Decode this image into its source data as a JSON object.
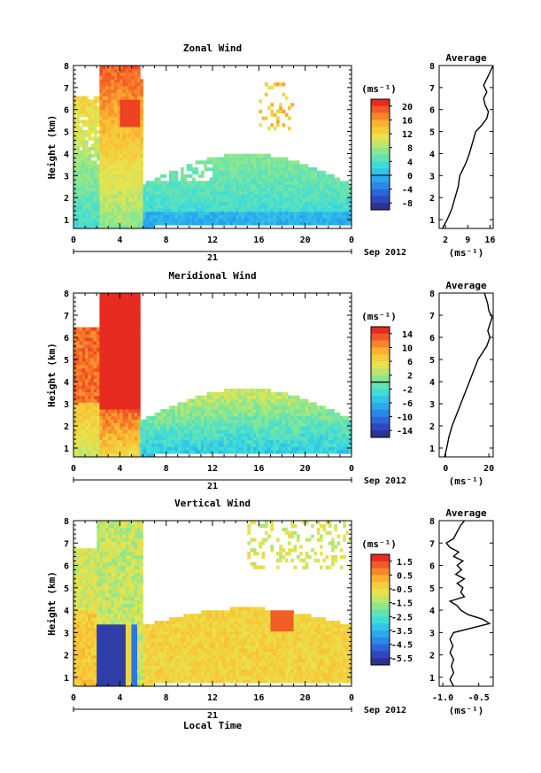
{
  "chart_data": [
    {
      "type": "heatmap",
      "title": "Zonal Wind",
      "ylabel": "Height (km)",
      "xlim": [
        0,
        24
      ],
      "ylim": [
        0.6,
        8
      ],
      "x_ticks": [
        "0",
        "4",
        "8",
        "12",
        "16",
        "20",
        "0"
      ],
      "y_ticks": [
        "1",
        "2",
        "3",
        "4",
        "5",
        "6",
        "7",
        "8"
      ],
      "date_label": "21",
      "month_label": "Sep 2012",
      "colorbar": {
        "unit": "(ms⁻¹)",
        "ticks": [
          "20",
          "16",
          "12",
          "8",
          "4",
          "0",
          "-4",
          "-8"
        ],
        "range": [
          -10,
          22
        ],
        "contour_at": 0
      },
      "profile": {
        "title": "Average",
        "xlabel": "(ms⁻¹)",
        "x_ticks": [
          "2",
          "9",
          "16"
        ],
        "xlim": [
          0,
          17
        ],
        "height_km": [
          0.6,
          1.0,
          1.5,
          2.0,
          2.5,
          3.0,
          3.3,
          3.6,
          4.0,
          4.5,
          5.0,
          5.3,
          5.6,
          5.9,
          6.2,
          6.5,
          6.8,
          7.1,
          7.4,
          7.7,
          8.0
        ],
        "value_ms": [
          1.0,
          2.5,
          4.0,
          5.0,
          6.0,
          6.5,
          7.5,
          8.5,
          9.5,
          10.5,
          11.5,
          13.5,
          15.0,
          15.5,
          14.5,
          14.0,
          15.0,
          14.0,
          15.0,
          16.0,
          17.0
        ]
      }
    },
    {
      "type": "heatmap",
      "title": "Meridional Wind",
      "ylabel": "Height (km)",
      "xlim": [
        0,
        24
      ],
      "ylim": [
        0.6,
        8
      ],
      "x_ticks": [
        "0",
        "4",
        "8",
        "12",
        "16",
        "20",
        "0"
      ],
      "y_ticks": [
        "1",
        "2",
        "3",
        "4",
        "5",
        "6",
        "7",
        "8"
      ],
      "date_label": "21",
      "month_label": "Sep 2012",
      "colorbar": {
        "unit": "(ms⁻¹)",
        "ticks": [
          "14",
          "10",
          "6",
          "2",
          "-2",
          "-6",
          "-10",
          "-14"
        ],
        "range": [
          -16,
          16
        ],
        "contour_at": 0
      },
      "profile": {
        "title": "Average",
        "xlabel": "(ms⁻¹)",
        "x_ticks": [
          "0",
          "20"
        ],
        "xlim": [
          -3,
          22
        ],
        "height_km": [
          0.6,
          1.0,
          1.5,
          2.0,
          2.5,
          3.0,
          3.5,
          4.0,
          4.5,
          5.0,
          5.3,
          5.6,
          6.0,
          6.3,
          6.6,
          6.9,
          7.2,
          7.5,
          8.0
        ],
        "value_ms": [
          -0.5,
          0.5,
          1.5,
          3.0,
          5.0,
          7.0,
          9.0,
          11.0,
          13.0,
          15.0,
          17.0,
          19.0,
          20.5,
          19.5,
          20.5,
          21.5,
          20.0,
          19.5,
          18.0
        ]
      }
    },
    {
      "type": "heatmap",
      "title": "Vertical Wind",
      "ylabel": "Height (km)",
      "xlabel": "Local Time",
      "xlim": [
        0,
        24
      ],
      "ylim": [
        0.6,
        8
      ],
      "x_ticks": [
        "0",
        "4",
        "8",
        "12",
        "16",
        "20",
        "0"
      ],
      "y_ticks": [
        "1",
        "2",
        "3",
        "4",
        "5",
        "6",
        "7",
        "8"
      ],
      "date_label": "21",
      "month_label": "Sep 2012",
      "colorbar": {
        "unit": "(ms⁻¹)",
        "ticks": [
          "1.5",
          "0.5",
          "-0.5",
          "-1.5",
          "-2.5",
          "-3.5",
          "-4.5",
          "-5.5"
        ],
        "range": [
          -6,
          2
        ]
      },
      "profile": {
        "title": "Average",
        "xlabel": "(ms⁻¹)",
        "x_ticks": [
          "-1.0",
          "-0.5"
        ],
        "xlim": [
          -1.05,
          -0.3
        ],
        "height_km": [
          0.6,
          0.9,
          1.2,
          1.5,
          1.8,
          2.1,
          2.4,
          2.7,
          3.0,
          3.2,
          3.4,
          3.6,
          3.8,
          4.0,
          4.2,
          4.4,
          4.6,
          4.8,
          5.0,
          5.2,
          5.4,
          5.6,
          5.8,
          6.0,
          6.2,
          6.4,
          6.6,
          6.8,
          7.0,
          7.2,
          7.5,
          7.8,
          8.0
        ],
        "value_ms": [
          -0.85,
          -0.9,
          -0.85,
          -0.88,
          -0.85,
          -0.9,
          -0.86,
          -0.9,
          -0.85,
          -0.6,
          -0.35,
          -0.45,
          -0.65,
          -0.75,
          -0.8,
          -0.9,
          -0.7,
          -0.75,
          -0.72,
          -0.8,
          -0.7,
          -0.82,
          -0.74,
          -0.8,
          -0.72,
          -0.85,
          -0.78,
          -0.9,
          -0.95,
          -0.85,
          -0.8,
          -0.75,
          -0.7
        ]
      }
    }
  ]
}
